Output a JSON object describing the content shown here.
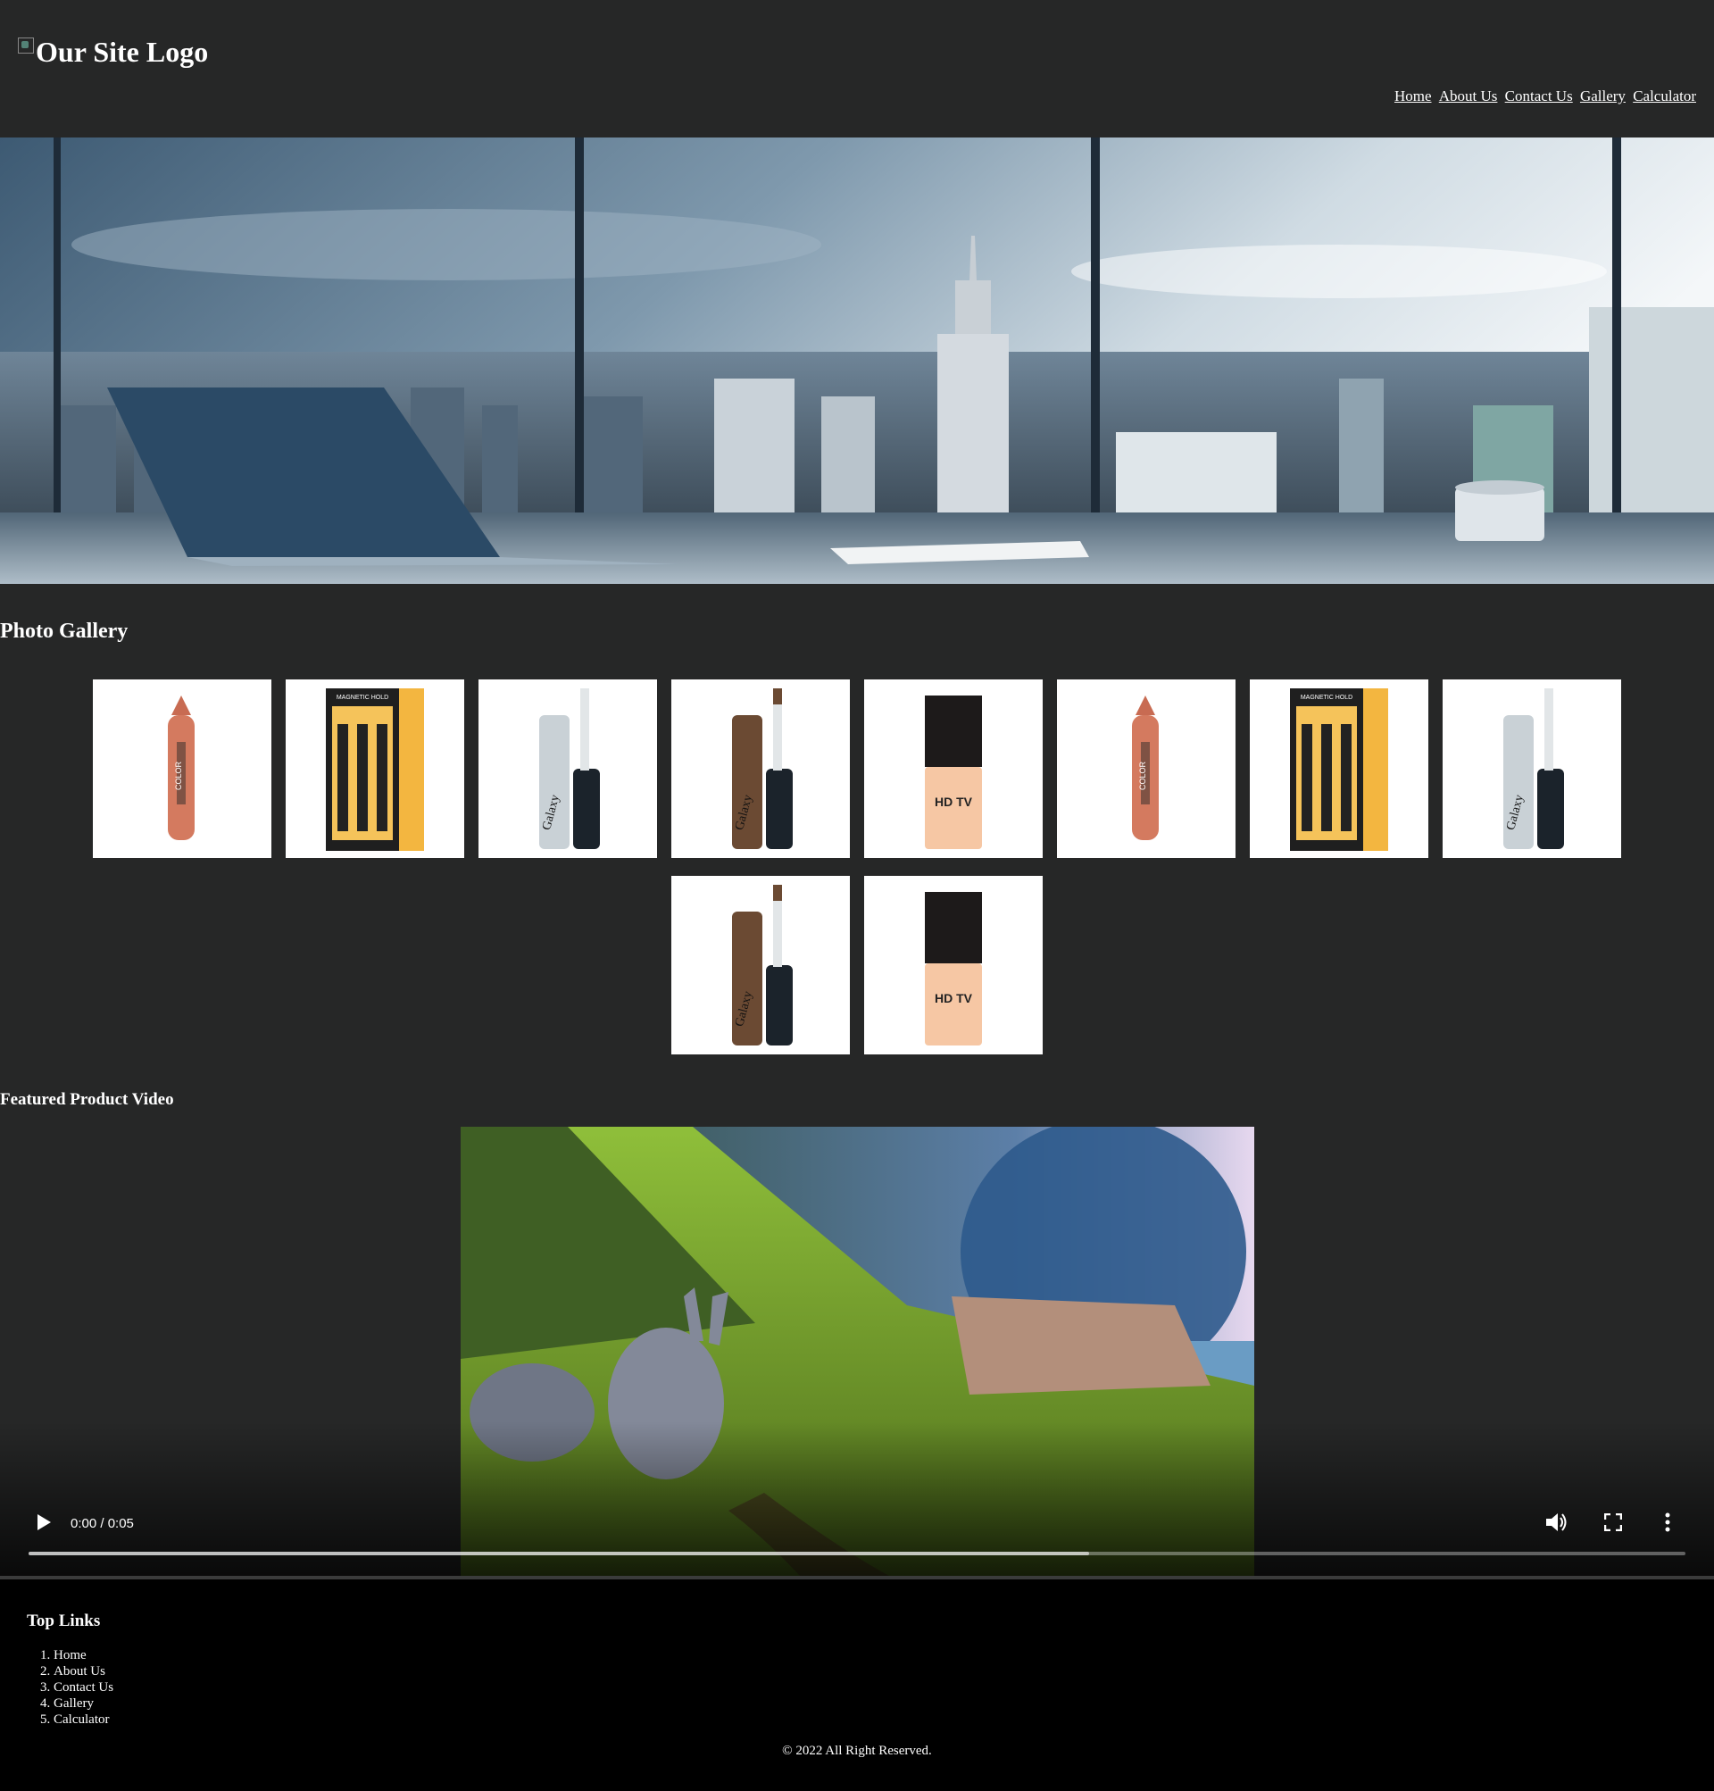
{
  "header": {
    "logo_alt": "Our Site Logo",
    "nav": [
      "Home",
      "About Us",
      "Contact Us",
      "Gallery",
      "Calculator"
    ]
  },
  "hero": {
    "image": "office-desk-city-skyline-photo"
  },
  "gallery": {
    "title": "Photo Gallery",
    "items": [
      {
        "product": "lipstick-crayon",
        "label": "COLOR"
      },
      {
        "product": "brush-set-box",
        "label": "MAGNETIC HOLD"
      },
      {
        "product": "lip-gloss-silver",
        "label": "Galaxy"
      },
      {
        "product": "lip-gloss-bronze",
        "label": "Galaxy"
      },
      {
        "product": "foundation-bottle",
        "label": "HD TV"
      },
      {
        "product": "lipstick-crayon",
        "label": "COLOR"
      },
      {
        "product": "brush-set-box",
        "label": "MAGNETIC HOLD"
      },
      {
        "product": "lip-gloss-silver",
        "label": "Galaxy"
      },
      {
        "product": "lip-gloss-bronze",
        "label": "Galaxy"
      },
      {
        "product": "foundation-bottle",
        "label": "HD TV"
      }
    ]
  },
  "video": {
    "title": "Featured Product Video",
    "time": "0:00 / 0:05",
    "buffered_fraction": 0.64,
    "controls": [
      "play-icon",
      "volume-icon",
      "fullscreen-icon",
      "more-options-icon"
    ]
  },
  "footer": {
    "title": "Top Links",
    "links": [
      "Home",
      "About Us",
      "Contact Us",
      "Gallery",
      "Calculator"
    ],
    "copyright": "© 2022 All Right Reserved."
  },
  "colors": {
    "page_bg": "#262727",
    "footer_bg": "#000000",
    "text": "#ffffff"
  }
}
